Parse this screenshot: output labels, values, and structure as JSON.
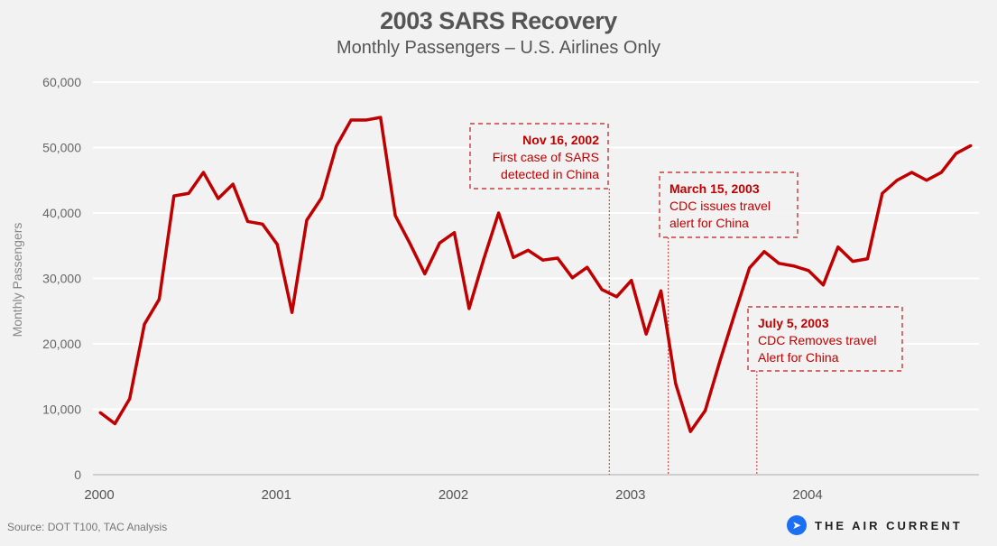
{
  "chart_data": {
    "type": "line",
    "title": "2003 SARS Recovery",
    "subtitle": "Monthly Passengers – U.S. Airlines Only",
    "xlabel": "",
    "ylabel": "Monthly Passengers",
    "ylim": [
      0,
      60000
    ],
    "yticks": [
      0,
      10000,
      20000,
      30000,
      40000,
      50000,
      60000
    ],
    "ytick_labels": [
      "0",
      "10,000",
      "20,000",
      "30,000",
      "40,000",
      "50,000",
      "60,000"
    ],
    "xtick_labels": [
      "2000",
      "2001",
      "2002",
      "2003",
      "2004"
    ],
    "grid": "horizontal",
    "line_color": "#c00000",
    "series": [
      {
        "name": "Monthly Passengers",
        "start": "2000-01",
        "values": [
          9500,
          7800,
          11600,
          23000,
          26800,
          42600,
          43000,
          46200,
          42200,
          44400,
          38700,
          38300,
          35200,
          24800,
          38900,
          42300,
          50200,
          54200,
          54200,
          54600,
          39600,
          35300,
          30700,
          35400,
          37000,
          25400,
          33000,
          40000,
          33200,
          34300,
          32800,
          33100,
          30100,
          31700,
          28300,
          27200,
          29700,
          21500,
          28100,
          13900,
          6600,
          9800,
          17400,
          24600,
          31600,
          34100,
          32300,
          31900,
          31200,
          29000,
          34800,
          32600,
          33000,
          43000,
          45000,
          46200,
          45000,
          46200,
          49100,
          50300
        ]
      }
    ],
    "annotations": [
      {
        "date_label": "Nov 16, 2002",
        "lines": [
          "First case of SARS",
          "detected in China"
        ],
        "month_index": 34.5
      },
      {
        "date_label": "March 15, 2003",
        "lines": [
          "CDC issues travel",
          "alert for China"
        ],
        "month_index": 38.5
      },
      {
        "date_label": "July 5, 2003",
        "lines": [
          "CDC Removes travel",
          "Alert for China"
        ],
        "month_index": 44.5
      }
    ]
  },
  "footer": {
    "source": "Source: DOT T100, TAC Analysis",
    "brand": "THE AIR CURRENT",
    "brand_icon": "paper-plane-icon",
    "brand_color": "#1a6ff2"
  }
}
